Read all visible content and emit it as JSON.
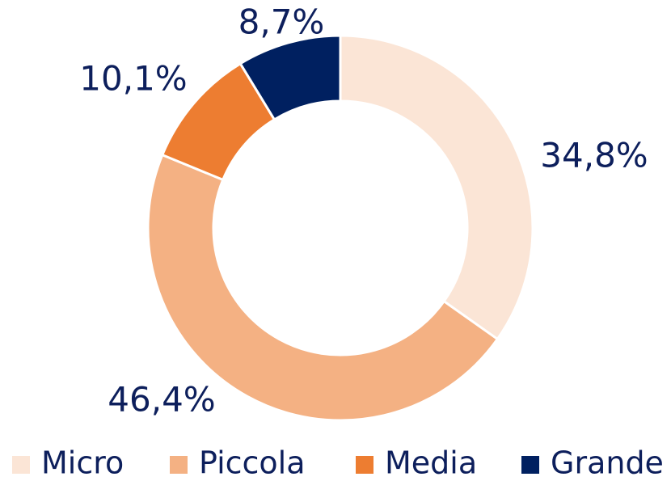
{
  "chart_data": {
    "type": "donut",
    "categories": [
      "Micro",
      "Piccola",
      "Media",
      "Grande"
    ],
    "values": [
      34.8,
      46.4,
      10.1,
      8.7
    ],
    "value_labels": [
      "34,8%",
      "46,4%",
      "10,1%",
      "8,7%"
    ],
    "colors": [
      "#fbe5d6",
      "#f4b183",
      "#ed7d31",
      "#002060"
    ],
    "legend": "bottom"
  }
}
